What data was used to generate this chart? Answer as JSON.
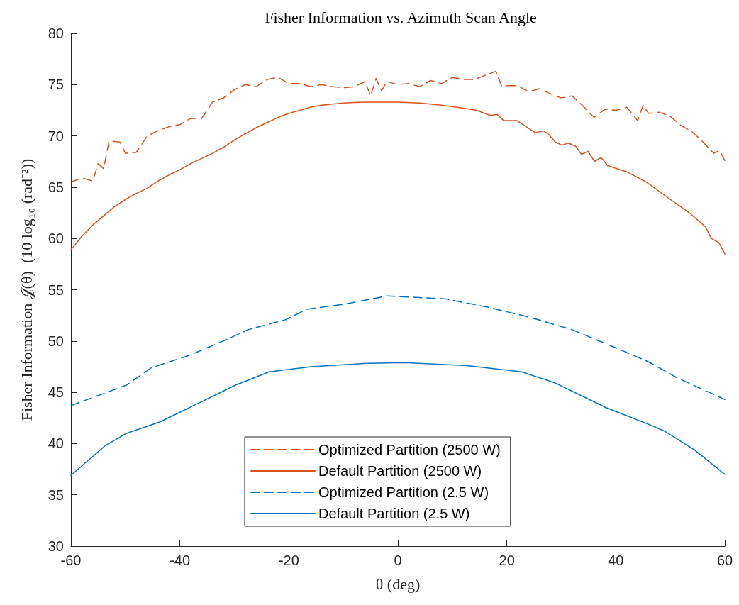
{
  "chart_data": {
    "type": "line",
    "title": "Fisher Information vs. Azimuth Scan Angle",
    "xlabel": "θ (deg)",
    "ylabel": "Fisher Information 𝒥(θ)  (10 log₁₀ (rad⁻²))",
    "xlim": [
      -60,
      60
    ],
    "xticks": [
      -60,
      -40,
      -20,
      0,
      20,
      40,
      60
    ],
    "ylim": [
      30,
      80
    ],
    "yticks": [
      30,
      35,
      40,
      45,
      50,
      55,
      60,
      65,
      70,
      75,
      80
    ],
    "grid": false,
    "legend": "bottom",
    "marker": "none",
    "series": [
      {
        "name": "Optimized Partition (2500 W)",
        "color": "#d95319",
        "line_style": "dashed",
        "x": [
          -60,
          -58,
          -56,
          -55,
          -54,
          -53,
          -51,
          -50,
          -48,
          -46,
          -44,
          -42,
          -40,
          -38,
          -36,
          -34,
          -32,
          -30,
          -28,
          -26,
          -24,
          -22,
          -20,
          -18,
          -16,
          -14,
          -12,
          -10,
          -8,
          -6,
          -5,
          -4,
          -3,
          -2,
          0,
          2,
          4,
          6,
          8,
          10,
          12,
          14,
          16,
          18,
          19,
          22,
          24,
          26,
          28,
          30,
          32,
          34,
          36,
          38,
          40,
          42,
          44,
          45,
          46,
          48,
          50,
          52,
          54,
          56,
          58,
          59,
          60
        ],
        "values": [
          65.5,
          65.9,
          65.6,
          67.3,
          66.8,
          69.5,
          69.4,
          68.3,
          68.4,
          70.0,
          70.5,
          70.9,
          71.1,
          71.7,
          71.7,
          73.3,
          73.7,
          74.5,
          75.0,
          74.8,
          75.5,
          75.7,
          75.1,
          75.1,
          74.8,
          75.0,
          74.8,
          74.7,
          74.8,
          75.3,
          73.9,
          75.6,
          74.4,
          75.3,
          75.0,
          75.1,
          74.8,
          75.4,
          75.1,
          75.7,
          75.5,
          75.5,
          75.9,
          76.3,
          74.9,
          74.9,
          74.3,
          74.6,
          74.1,
          73.7,
          73.9,
          72.9,
          71.8,
          72.6,
          72.5,
          72.8,
          71.5,
          73.0,
          72.2,
          72.3,
          71.9,
          71.0,
          70.4,
          69.4,
          68.3,
          68.6,
          67.6
        ]
      },
      {
        "name": "Default Partition (2500 W)",
        "color": "#d95319",
        "line_style": "solid",
        "x": [
          -60,
          -58,
          -56,
          -54,
          -52,
          -50,
          -48,
          -46,
          -44,
          -42,
          -40,
          -38,
          -36,
          -34,
          -32,
          -30,
          -28,
          -26,
          -24,
          -22,
          -20,
          -18,
          -16,
          -14,
          -12,
          -10,
          -6,
          -2,
          0,
          4,
          8,
          12,
          14.4,
          17,
          18.2,
          19.4,
          21.8,
          25.3,
          26.6,
          27.6,
          28.9,
          30.1,
          31.3,
          32.6,
          33.7,
          34.9,
          36.1,
          37.3,
          38.5,
          42,
          45.6,
          50,
          53.5,
          56.5,
          57.5,
          58.9,
          60
        ],
        "values": [
          58.9,
          60.2,
          61.3,
          62.2,
          63.1,
          63.8,
          64.4,
          64.9,
          65.6,
          66.2,
          66.7,
          67.3,
          67.8,
          68.3,
          68.9,
          69.6,
          70.2,
          70.8,
          71.3,
          71.8,
          72.2,
          72.5,
          72.8,
          73.0,
          73.1,
          73.2,
          73.3,
          73.3,
          73.3,
          73.2,
          73.0,
          72.7,
          72.5,
          72.0,
          72.1,
          71.5,
          71.5,
          70.3,
          70.5,
          70.2,
          69.4,
          69.1,
          69.3,
          69.0,
          68.2,
          68.5,
          67.5,
          67.9,
          67.1,
          66.5,
          65.5,
          63.8,
          62.5,
          61.1,
          60.0,
          59.6,
          58.5
        ]
      },
      {
        "name": "Optimized Partition (2.5 W)",
        "color": "#0072bd",
        "line_style": "dashed",
        "x": [
          -60,
          -49.8,
          -45.2,
          -38.3,
          -32.9,
          -27.5,
          -20.5,
          -16.7,
          -9.7,
          -2,
          8.8,
          16.5,
          24.3,
          32,
          39.7,
          45.9,
          51.3,
          60
        ],
        "values": [
          43.7,
          45.7,
          47.4,
          48.6,
          49.8,
          51.1,
          52.1,
          53.1,
          53.6,
          54.4,
          54.1,
          53.3,
          52.3,
          51.1,
          49.4,
          48.0,
          46.4,
          44.3
        ]
      },
      {
        "name": "Default Partition (2.5 W)",
        "color": "#0072bd",
        "line_style": "solid",
        "x": [
          -60,
          -53.7,
          -49.8,
          -43.7,
          -37.5,
          -29.8,
          -23.6,
          -15.9,
          -6.6,
          1.1,
          12.7,
          22.7,
          28.9,
          38.2,
          45.9,
          49,
          54.4,
          60
        ],
        "values": [
          36.9,
          39.8,
          41.0,
          42.1,
          43.7,
          45.7,
          47.0,
          47.5,
          47.8,
          47.9,
          47.6,
          47.0,
          45.9,
          43.5,
          41.9,
          41.2,
          39.4,
          37.0
        ]
      }
    ]
  }
}
